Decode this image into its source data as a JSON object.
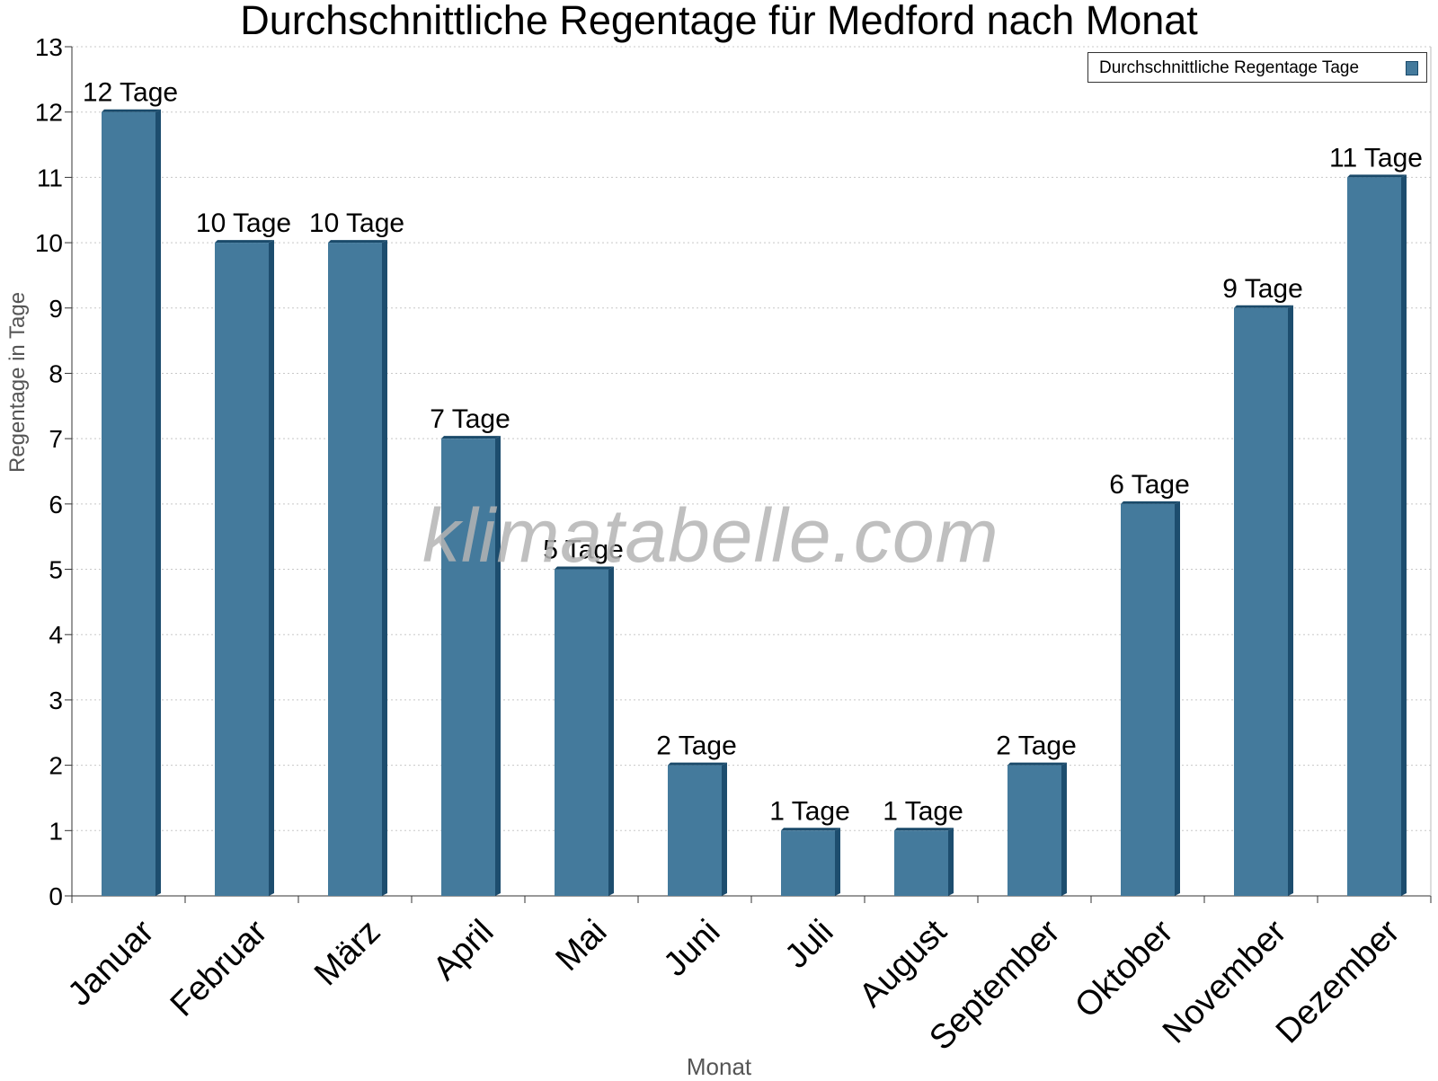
{
  "chart_data": {
    "type": "bar",
    "title": "Durchschnittliche Regentage für Medford nach Monat",
    "xlabel": "Monat",
    "ylabel": "Regentage in Tage",
    "ylim": [
      0,
      13
    ],
    "yticks": [
      0,
      1,
      2,
      3,
      4,
      5,
      6,
      7,
      8,
      9,
      10,
      11,
      12,
      13
    ],
    "grid": true,
    "legend_position": "top-right",
    "categories": [
      "Januar",
      "Februar",
      "März",
      "April",
      "Mai",
      "Juni",
      "Juli",
      "August",
      "September",
      "Oktober",
      "November",
      "Dezember"
    ],
    "series": [
      {
        "name": "Durchschnittliche Regentage Tage",
        "color": "#447a9c",
        "values": [
          12,
          10,
          10,
          7,
          5,
          2,
          1,
          1,
          2,
          6,
          9,
          11
        ],
        "data_labels": [
          "12 Tage",
          "10 Tage",
          "10 Tage",
          "7 Tage",
          "5 Tage",
          "2 Tage",
          "1 Tage",
          "1 Tage",
          "2 Tage",
          "6 Tage",
          "9 Tage",
          "11 Tage"
        ]
      }
    ],
    "watermark": "klimatabelle.com"
  }
}
